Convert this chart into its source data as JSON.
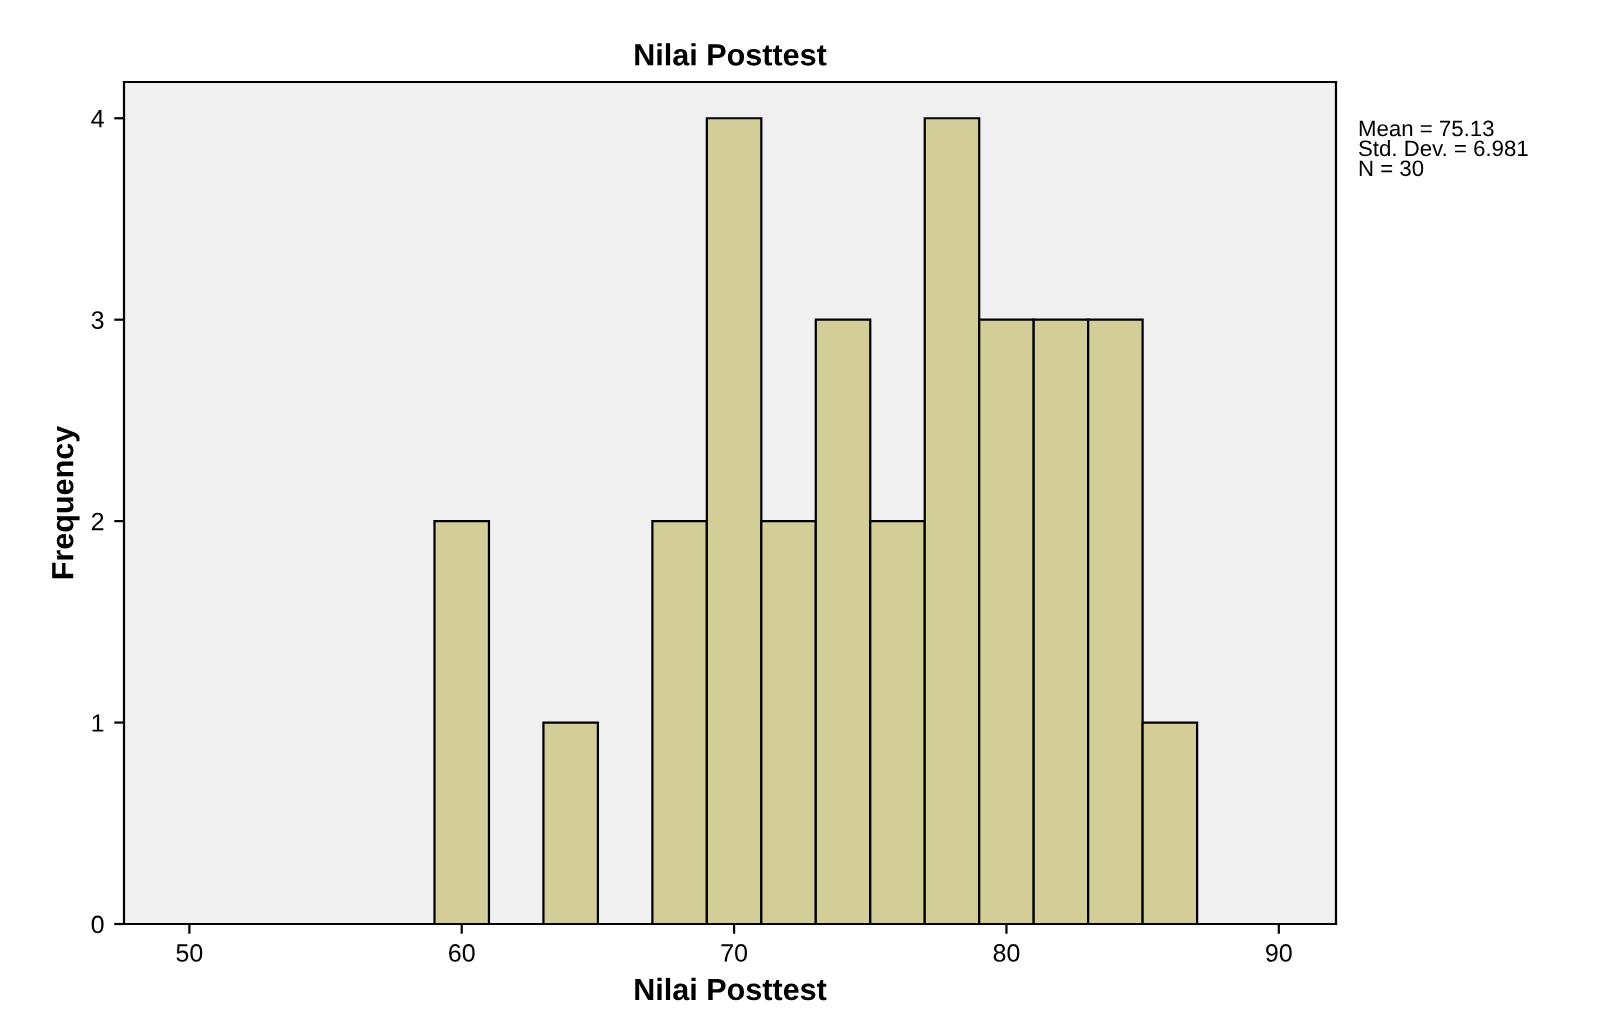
{
  "chart_data": {
    "type": "histogram",
    "title": "Nilai Posttest",
    "xlabel": "Nilai Posttest",
    "ylabel": "Frequency",
    "bins": [
      59,
      61,
      63,
      65,
      67,
      69,
      71,
      73,
      75,
      77,
      79,
      81,
      83,
      85,
      87
    ],
    "values": [
      2,
      0,
      1,
      0,
      2,
      4,
      2,
      3,
      2,
      4,
      3,
      3,
      3,
      1
    ],
    "color": "#d3ce97",
    "xlim": [
      47.6,
      92.1
    ],
    "xticks": [
      50,
      60,
      70,
      80,
      90
    ],
    "ylim": [
      0,
      4.18
    ],
    "yticks": [
      0,
      1,
      2,
      3,
      4
    ],
    "grid": false,
    "annotations": [
      "Mean = 75.13\nStd. Dev. = 6.981\nN = 30"
    ]
  }
}
